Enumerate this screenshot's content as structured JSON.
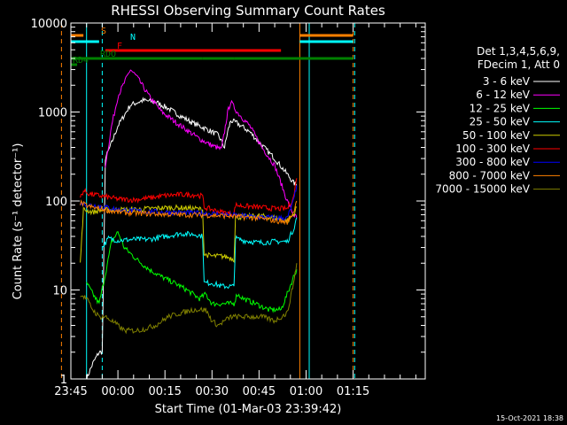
{
  "chart_data": {
    "type": "line",
    "title": "RHESSI Observing Summary Count Rates",
    "xlabel": "Start Time (01-Mar-03 23:39:42)",
    "ylabel": "Count Rate (s⁻¹ detector⁻¹)",
    "y_scale": "log",
    "ylim": [
      1,
      10000
    ],
    "xlim_minutes": [
      -15,
      98
    ],
    "x_tick_labels": [
      "23:45",
      "00:00",
      "00:15",
      "00:30",
      "00:45",
      "01:00",
      "01:15"
    ],
    "x_tick_minutes": [
      -15,
      0,
      15,
      30,
      45,
      60,
      75
    ],
    "y_tick_labels": [
      "1",
      "10",
      "100",
      "1000",
      "10000"
    ],
    "y_tick_values": [
      1,
      10,
      100,
      1000,
      10000
    ],
    "legend_header": [
      "Det 1,3,4,5,6,9,",
      "FDecim 1, Att 0"
    ],
    "legend_position": "right",
    "timestamp": "15-Oct-2021 18:38",
    "flag_bars": [
      {
        "label": "S",
        "color": "#ff8000",
        "segments": [
          [
            -21,
            -11
          ],
          [
            58,
            75
          ]
        ]
      },
      {
        "label": "N",
        "color": "#00ffff",
        "segments": [
          [
            -21,
            -6
          ],
          [
            58,
            75
          ]
        ]
      },
      {
        "label": "F",
        "color": "#ff0000",
        "segments": [
          [
            -4,
            52
          ]
        ]
      },
      {
        "label": "RDO",
        "color": "#008000",
        "segments": [
          [
            -21,
            27
          ],
          [
            27,
            37
          ],
          [
            37,
            75
          ]
        ]
      },
      {
        "label": "RD4",
        "color": "#008000",
        "segments": [
          [
            -21,
            -13
          ]
        ]
      }
    ],
    "vertical_markers": [
      {
        "minute": -18,
        "color": "#ff8000",
        "dashed": true
      },
      {
        "minute": -10,
        "color": "#00ffff",
        "dashed": false
      },
      {
        "minute": -5,
        "color": "#00ffff",
        "dashed": true
      },
      {
        "minute": 58,
        "color": "#ff8000",
        "dashed": false
      },
      {
        "minute": 61,
        "color": "#00ffff",
        "dashed": false
      },
      {
        "minute": 75,
        "color": "#ff8000",
        "dashed": true
      },
      {
        "minute": 75.5,
        "color": "#00ffff",
        "dashed": true
      }
    ],
    "series": [
      {
        "name": "3 - 6 keV",
        "color": "#ffffff",
        "points": [
          [
            -10,
            1
          ],
          [
            -8,
            1.5
          ],
          [
            -6,
            2
          ],
          [
            -5,
            2
          ],
          [
            -4,
            300
          ],
          [
            -2,
            450
          ],
          [
            0,
            700
          ],
          [
            4,
            1200
          ],
          [
            8,
            1350
          ],
          [
            12,
            1300
          ],
          [
            16,
            1100
          ],
          [
            20,
            900
          ],
          [
            24,
            750
          ],
          [
            28,
            650
          ],
          [
            32,
            550
          ],
          [
            34,
            400
          ],
          [
            35,
            600
          ],
          [
            36,
            800
          ],
          [
            38,
            750
          ],
          [
            42,
            600
          ],
          [
            46,
            420
          ],
          [
            50,
            300
          ],
          [
            54,
            200
          ],
          [
            56,
            160
          ],
          [
            57,
            150
          ]
        ]
      },
      {
        "name": "6 - 12 keV",
        "color": "#ff00ff",
        "points": [
          [
            -4,
            250
          ],
          [
            -2,
            700
          ],
          [
            0,
            1500
          ],
          [
            4,
            3000
          ],
          [
            6,
            2500
          ],
          [
            10,
            1500
          ],
          [
            14,
            1000
          ],
          [
            20,
            700
          ],
          [
            26,
            500
          ],
          [
            30,
            420
          ],
          [
            33,
            380
          ],
          [
            34,
            600
          ],
          [
            35,
            1000
          ],
          [
            36,
            1300
          ],
          [
            38,
            1000
          ],
          [
            42,
            700
          ],
          [
            46,
            400
          ],
          [
            50,
            250
          ],
          [
            54,
            100
          ],
          [
            56,
            70
          ],
          [
            57,
            65
          ]
        ]
      },
      {
        "name": "12 - 25 keV",
        "color": "#00ff00",
        "points": [
          [
            -10,
            12
          ],
          [
            -8,
            9
          ],
          [
            -6,
            7
          ],
          [
            -4,
            15
          ],
          [
            -2,
            35
          ],
          [
            0,
            45
          ],
          [
            2,
            30
          ],
          [
            6,
            22
          ],
          [
            10,
            17
          ],
          [
            14,
            14
          ],
          [
            18,
            12
          ],
          [
            22,
            10
          ],
          [
            26,
            8
          ],
          [
            28,
            9
          ],
          [
            30,
            7
          ],
          [
            34,
            7
          ],
          [
            37,
            7
          ],
          [
            38,
            9
          ],
          [
            40,
            8
          ],
          [
            44,
            7
          ],
          [
            48,
            6
          ],
          [
            52,
            6
          ],
          [
            54,
            9
          ],
          [
            56,
            14
          ],
          [
            57,
            17
          ]
        ]
      },
      {
        "name": "25 - 50 keV",
        "color": "#00ffff",
        "points": [
          [
            -5,
            30
          ],
          [
            -3,
            38
          ],
          [
            0,
            36
          ],
          [
            5,
            37
          ],
          [
            10,
            37
          ],
          [
            15,
            40
          ],
          [
            20,
            43
          ],
          [
            25,
            42
          ],
          [
            27,
            40
          ],
          [
            27.5,
            12
          ],
          [
            30,
            12
          ],
          [
            33,
            11
          ],
          [
            36,
            11
          ],
          [
            37,
            11
          ],
          [
            37.5,
            38
          ],
          [
            40,
            36
          ],
          [
            45,
            34
          ],
          [
            50,
            35
          ],
          [
            54,
            35
          ],
          [
            56,
            48
          ],
          [
            57,
            65
          ]
        ]
      },
      {
        "name": "50 - 100 keV",
        "color": "#cccc00",
        "points": [
          [
            -12,
            20
          ],
          [
            -11,
            80
          ],
          [
            -8,
            75
          ],
          [
            -4,
            80
          ],
          [
            0,
            80
          ],
          [
            5,
            80
          ],
          [
            10,
            82
          ],
          [
            15,
            84
          ],
          [
            20,
            84
          ],
          [
            25,
            82
          ],
          [
            27,
            80
          ],
          [
            27.5,
            25
          ],
          [
            30,
            24
          ],
          [
            33,
            24
          ],
          [
            36,
            23
          ],
          [
            37,
            22
          ],
          [
            37.5,
            65
          ],
          [
            40,
            67
          ],
          [
            45,
            68
          ],
          [
            50,
            65
          ],
          [
            54,
            60
          ],
          [
            56,
            70
          ],
          [
            57,
            85
          ]
        ]
      },
      {
        "name": "100 - 300 keV",
        "color": "#ff0000",
        "points": [
          [
            -12,
            110
          ],
          [
            -11,
            130
          ],
          [
            -9,
            120
          ],
          [
            -6,
            115
          ],
          [
            -3,
            110
          ],
          [
            0,
            105
          ],
          [
            5,
            103
          ],
          [
            10,
            108
          ],
          [
            15,
            115
          ],
          [
            20,
            118
          ],
          [
            25,
            117
          ],
          [
            27,
            113
          ],
          [
            27.5,
            85
          ],
          [
            30,
            80
          ],
          [
            33,
            75
          ],
          [
            36,
            72
          ],
          [
            37,
            72
          ],
          [
            37.5,
            90
          ],
          [
            40,
            88
          ],
          [
            45,
            85
          ],
          [
            50,
            82
          ],
          [
            54,
            82
          ],
          [
            56,
            110
          ],
          [
            57,
            180
          ]
        ]
      },
      {
        "name": "300 - 800 keV",
        "color": "#0000ff",
        "points": [
          [
            -12,
            95
          ],
          [
            -9,
            90
          ],
          [
            -6,
            88
          ],
          [
            -3,
            84
          ],
          [
            0,
            80
          ],
          [
            5,
            78
          ],
          [
            10,
            76
          ],
          [
            15,
            75
          ],
          [
            20,
            74
          ],
          [
            25,
            73
          ],
          [
            30,
            72
          ],
          [
            35,
            70
          ],
          [
            40,
            68
          ],
          [
            45,
            66
          ],
          [
            50,
            65
          ],
          [
            54,
            64
          ],
          [
            56,
            100
          ],
          [
            57,
            150
          ]
        ]
      },
      {
        "name": "800 - 7000 keV",
        "color": "#ff8000",
        "points": [
          [
            -12,
            95
          ],
          [
            -9,
            86
          ],
          [
            -6,
            82
          ],
          [
            -3,
            78
          ],
          [
            0,
            75
          ],
          [
            5,
            73
          ],
          [
            10,
            72
          ],
          [
            15,
            71
          ],
          [
            20,
            70
          ],
          [
            25,
            70
          ],
          [
            30,
            69
          ],
          [
            35,
            68
          ],
          [
            40,
            66
          ],
          [
            45,
            64
          ],
          [
            50,
            60
          ],
          [
            54,
            58
          ],
          [
            56,
            75
          ],
          [
            57,
            100
          ]
        ]
      },
      {
        "name": "7000 - 15000 keV",
        "color": "#808000",
        "points": [
          [
            -12,
            9
          ],
          [
            -10,
            8
          ],
          [
            -8,
            6
          ],
          [
            -6,
            5
          ],
          [
            -4,
            5
          ],
          [
            -2,
            4.5
          ],
          [
            0,
            4
          ],
          [
            2,
            3.5
          ],
          [
            4,
            3.5
          ],
          [
            6,
            3.5
          ],
          [
            8,
            3.6
          ],
          [
            10,
            3.8
          ],
          [
            12,
            4
          ],
          [
            16,
            5
          ],
          [
            20,
            5.5
          ],
          [
            24,
            6
          ],
          [
            28,
            6
          ],
          [
            30,
            4.5
          ],
          [
            32,
            4
          ],
          [
            34,
            4.5
          ],
          [
            36,
            5
          ],
          [
            38,
            5
          ],
          [
            42,
            5
          ],
          [
            46,
            5
          ],
          [
            50,
            4.5
          ],
          [
            54,
            5.5
          ],
          [
            56,
            12
          ],
          [
            57,
            20
          ]
        ]
      }
    ]
  }
}
